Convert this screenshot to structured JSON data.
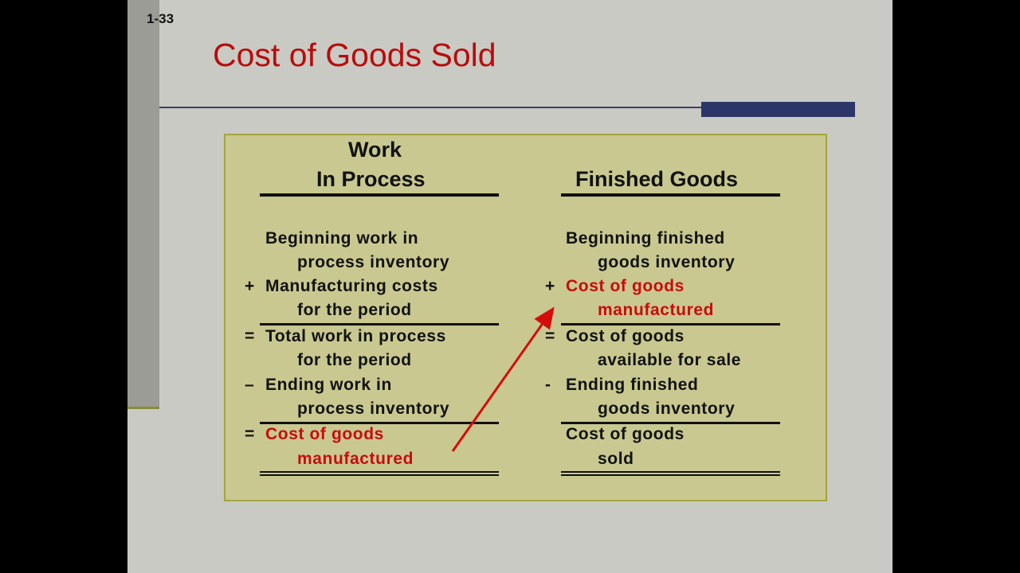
{
  "slide_number": "1-33",
  "title": "Cost of Goods Sold",
  "colors": {
    "title": "#b80c0c",
    "highlight": "#c80c0c",
    "box": "#c8c890",
    "accent_bar": "#2d3668"
  },
  "wip": {
    "heading_line1": "Work",
    "heading_line2": "In Process",
    "rows": [
      {
        "symbol": "",
        "text": "Beginning work in"
      },
      {
        "symbol": "",
        "text": "process inventory"
      },
      {
        "symbol": "+",
        "text": "Manufacturing costs"
      },
      {
        "symbol": "",
        "text": "for the period"
      },
      {
        "symbol": "=",
        "text": "Total work in process"
      },
      {
        "symbol": "",
        "text": "for the period"
      },
      {
        "symbol": "–",
        "text": "Ending work in"
      },
      {
        "symbol": "",
        "text": "process inventory"
      },
      {
        "symbol": "=",
        "text": "Cost of goods"
      },
      {
        "symbol": "",
        "text": "manufactured"
      }
    ]
  },
  "fg": {
    "heading": "Finished Goods",
    "rows": [
      {
        "symbol": "",
        "text": "Beginning finished"
      },
      {
        "symbol": "",
        "text": "goods inventory"
      },
      {
        "symbol": "+",
        "text": "Cost of goods"
      },
      {
        "symbol": "",
        "text": "manufactured"
      },
      {
        "symbol": "=",
        "text": "Cost of goods"
      },
      {
        "symbol": "",
        "text": "available for sale"
      },
      {
        "symbol": "-",
        "text": "Ending finished"
      },
      {
        "symbol": "",
        "text": "goods inventory"
      },
      {
        "symbol": "",
        "text": "Cost of goods"
      },
      {
        "symbol": "",
        "text": "sold"
      }
    ]
  }
}
